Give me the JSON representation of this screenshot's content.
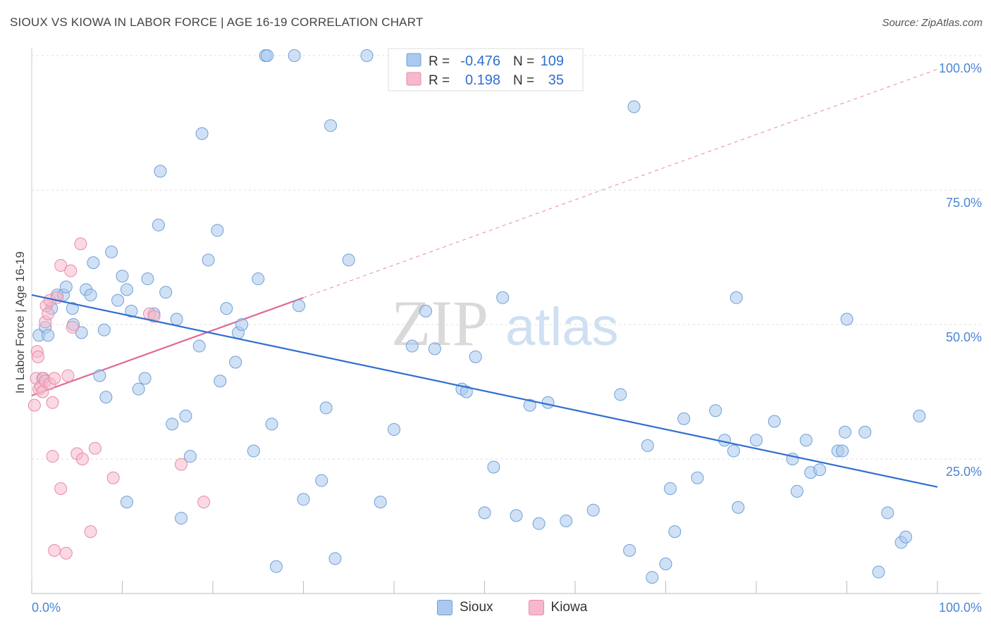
{
  "header": {
    "title": "SIOUX VS KIOWA IN LABOR FORCE | AGE 16-19 CORRELATION CHART",
    "source": "Source: ZipAtlas.com"
  },
  "watermark": {
    "zip": "ZIP",
    "atlas": "atlas"
  },
  "stats": {
    "rows": [
      {
        "r_label": "R =",
        "r_value": "-0.476",
        "n_label": "N =",
        "n_value": "109"
      },
      {
        "r_label": "R =",
        "r_value": "0.198",
        "n_label": "N =",
        "n_value": "35"
      }
    ]
  },
  "colors": {
    "sioux_fill": "#a9c9ee",
    "sioux_stroke": "#6fa0d8",
    "sioux_line": "#2f6fcf",
    "kiowa_fill": "#f6b9cb",
    "kiowa_stroke": "#e88aa8",
    "kiowa_line": "#e06a95",
    "value_text": "#2f6fcf",
    "axis_text": "#4a86d4"
  },
  "chart_data": {
    "type": "scatter",
    "title": "SIOUX VS KIOWA IN LABOR FORCE | AGE 16-19 CORRELATION CHART",
    "xlabel": "",
    "ylabel": "In Labor Force | Age 16-19",
    "xlim": [
      0,
      100
    ],
    "ylim": [
      0,
      100
    ],
    "x_tick_labels": [
      "0.0%",
      "100.0%"
    ],
    "y_tick_labels": [
      "25.0%",
      "50.0%",
      "75.0%",
      "100.0%"
    ],
    "y_ticks": [
      25,
      50,
      75,
      100
    ],
    "legend": [
      "Sioux",
      "Kiowa"
    ],
    "series": [
      {
        "name": "Sioux",
        "r": -0.476,
        "n": 109,
        "trend": {
          "x": [
            0,
            100
          ],
          "y": [
            55.5,
            19.8
          ]
        },
        "points": [
          [
            0.8,
            48
          ],
          [
            1.2,
            40
          ],
          [
            1.5,
            49.5
          ],
          [
            1.8,
            48
          ],
          [
            2.2,
            53
          ],
          [
            2.8,
            55.5
          ],
          [
            3.5,
            55.5
          ],
          [
            3.8,
            57
          ],
          [
            4.5,
            53
          ],
          [
            4.6,
            50
          ],
          [
            5.5,
            48.5
          ],
          [
            6,
            56.5
          ],
          [
            6.5,
            55.5
          ],
          [
            6.8,
            61.5
          ],
          [
            7.5,
            40.5
          ],
          [
            8,
            49
          ],
          [
            8.2,
            36.5
          ],
          [
            8.8,
            63.5
          ],
          [
            9.5,
            54.5
          ],
          [
            10,
            59
          ],
          [
            10.5,
            56.5
          ],
          [
            10.5,
            17
          ],
          [
            11,
            52.5
          ],
          [
            11.8,
            38
          ],
          [
            12.5,
            40
          ],
          [
            12.8,
            58.5
          ],
          [
            13.5,
            52
          ],
          [
            14,
            68.5
          ],
          [
            14.2,
            78.5
          ],
          [
            14.8,
            56
          ],
          [
            15.5,
            31.5
          ],
          [
            16,
            51
          ],
          [
            16.5,
            14
          ],
          [
            17,
            33
          ],
          [
            17.5,
            25.5
          ],
          [
            18.5,
            46
          ],
          [
            18.8,
            85.5
          ],
          [
            19.5,
            62
          ],
          [
            20.5,
            67.5
          ],
          [
            20.8,
            39.5
          ],
          [
            21.5,
            53
          ],
          [
            22.5,
            43
          ],
          [
            22.8,
            48.5
          ],
          [
            23.2,
            50
          ],
          [
            24.5,
            26.5
          ],
          [
            25,
            58.5
          ],
          [
            25.8,
            100
          ],
          [
            26,
            100
          ],
          [
            26.5,
            31.5
          ],
          [
            27,
            5
          ],
          [
            29,
            100
          ],
          [
            29.5,
            53.5
          ],
          [
            30,
            17.5
          ],
          [
            32,
            21
          ],
          [
            32.5,
            34.5
          ],
          [
            33,
            87
          ],
          [
            33.5,
            6.5
          ],
          [
            35,
            62
          ],
          [
            37,
            100
          ],
          [
            38.5,
            17
          ],
          [
            40,
            30.5
          ],
          [
            42,
            46
          ],
          [
            43.5,
            52.5
          ],
          [
            44.5,
            45.5
          ],
          [
            45,
            100
          ],
          [
            47.5,
            38
          ],
          [
            48,
            37.5
          ],
          [
            49,
            44
          ],
          [
            50,
            15
          ],
          [
            51,
            23.5
          ],
          [
            52,
            55
          ],
          [
            53.5,
            14.5
          ],
          [
            55,
            35
          ],
          [
            56,
            13
          ],
          [
            57,
            35.5
          ],
          [
            59,
            13.5
          ],
          [
            62,
            15.5
          ],
          [
            65,
            37
          ],
          [
            66,
            8
          ],
          [
            66.5,
            90.5
          ],
          [
            68,
            27.5
          ],
          [
            68.5,
            3
          ],
          [
            70,
            5.5
          ],
          [
            70.5,
            19.5
          ],
          [
            71,
            11.5
          ],
          [
            72,
            32.5
          ],
          [
            73.5,
            21.5
          ],
          [
            75.5,
            34
          ],
          [
            76.5,
            28.5
          ],
          [
            77.5,
            26.5
          ],
          [
            77.8,
            55
          ],
          [
            78,
            16
          ],
          [
            80,
            28.5
          ],
          [
            82,
            32
          ],
          [
            84,
            25
          ],
          [
            84.5,
            19
          ],
          [
            85.5,
            28.5
          ],
          [
            86,
            22.5
          ],
          [
            87,
            23
          ],
          [
            89,
            26.5
          ],
          [
            89.5,
            26.5
          ],
          [
            89.8,
            30
          ],
          [
            90,
            51
          ],
          [
            92,
            30
          ],
          [
            93.5,
            4
          ],
          [
            94.5,
            15
          ],
          [
            96,
            9.5
          ],
          [
            96.5,
            10.5
          ],
          [
            98,
            33
          ]
        ]
      },
      {
        "name": "Kiowa",
        "r": 0.198,
        "n": 35,
        "trend": {
          "x": [
            0,
            30
          ],
          "y": [
            36.8,
            55
          ]
        },
        "points": [
          [
            0.3,
            35
          ],
          [
            0.5,
            40
          ],
          [
            0.6,
            45
          ],
          [
            0.7,
            44
          ],
          [
            0.8,
            38
          ],
          [
            1,
            38.5
          ],
          [
            1.2,
            37.5
          ],
          [
            1.3,
            40
          ],
          [
            1.5,
            39.5
          ],
          [
            1.5,
            50.5
          ],
          [
            1.6,
            53.5
          ],
          [
            1.8,
            52
          ],
          [
            2,
            39
          ],
          [
            2,
            54.5
          ],
          [
            2.3,
            25.5
          ],
          [
            2.3,
            35.5
          ],
          [
            2.5,
            40
          ],
          [
            2.5,
            8
          ],
          [
            2.8,
            55
          ],
          [
            3.2,
            19.5
          ],
          [
            3.2,
            61
          ],
          [
            3.8,
            7.5
          ],
          [
            4,
            40.5
          ],
          [
            4.3,
            60
          ],
          [
            4.5,
            49.5
          ],
          [
            5,
            26
          ],
          [
            5.4,
            65
          ],
          [
            5.6,
            25
          ],
          [
            6.5,
            11.5
          ],
          [
            7,
            27
          ],
          [
            9,
            21.5
          ],
          [
            13,
            52
          ],
          [
            13.5,
            51.5
          ],
          [
            16.5,
            24
          ],
          [
            19,
            17
          ]
        ]
      }
    ]
  }
}
